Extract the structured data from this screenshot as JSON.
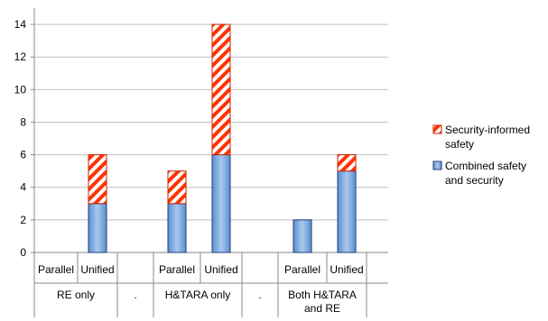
{
  "chart_data": {
    "type": "bar",
    "stacked": true,
    "title": "",
    "xlabel": "",
    "ylabel": "",
    "ylim": [
      0,
      15
    ],
    "yticks": [
      0,
      2,
      4,
      6,
      8,
      10,
      12,
      14
    ],
    "grid": true,
    "legend_position": "right",
    "groups": [
      {
        "label": "RE only",
        "categories": [
          "Parallel",
          "Unified"
        ]
      },
      {
        "label": ".",
        "categories": [
          ""
        ]
      },
      {
        "label": "H&TARA only",
        "categories": [
          "Parallel",
          "Unified"
        ]
      },
      {
        "label": ".",
        "categories": [
          ""
        ]
      },
      {
        "label": "Both H&TARA and RE",
        "label_lines": [
          "Both H&TARA",
          "and RE"
        ],
        "categories": [
          "Parallel",
          "Unified"
        ]
      }
    ],
    "series": [
      {
        "name": "Combined safety and security",
        "legend_lines": [
          "Combined safety",
          "and security"
        ],
        "color": "#6a9fd8",
        "values": [
          0,
          3,
          null,
          3,
          6,
          null,
          2,
          5
        ]
      },
      {
        "name": "Security-informed safety",
        "legend_lines": [
          "Security-informed",
          "safety"
        ],
        "color": "#ff3300",
        "pattern": "diagonal-stripes",
        "values": [
          0,
          3,
          null,
          2,
          8,
          null,
          0,
          1
        ]
      }
    ]
  }
}
